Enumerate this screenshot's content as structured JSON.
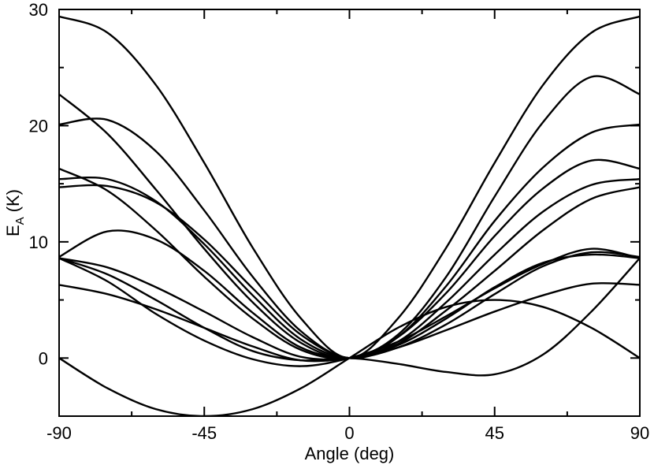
{
  "chart_data": {
    "type": "line",
    "xlabel": "Angle (deg)",
    "ylabel_main": "E",
    "ylabel_sub": "A",
    "ylabel_unit": "(K)",
    "xlim": [
      -90,
      90
    ],
    "ylim": [
      -5,
      30
    ],
    "x_ticks": [
      -90,
      -45,
      0,
      45,
      90
    ],
    "x_tick_labels": [
      "-90",
      "-45",
      "0",
      "45",
      "90"
    ],
    "y_ticks": [
      0,
      10,
      20,
      30
    ],
    "y_tick_labels": [
      "0",
      "10",
      "20",
      "30"
    ],
    "x_minor_ticks": [
      -67.5,
      -22.5,
      22.5,
      67.5
    ],
    "y_minor_ticks": [
      -5,
      5,
      15,
      25
    ],
    "grid": false,
    "legend": "none",
    "line_color": "#000000",
    "series": [
      {
        "x": [
          -90,
          -75,
          -60,
          -45,
          -30,
          -15,
          0,
          15,
          30,
          45,
          60,
          75,
          90
        ],
        "y": [
          29.4,
          28.0,
          23.5,
          16.8,
          9.5,
          3.4,
          0,
          3.4,
          9.5,
          16.8,
          23.5,
          28.0,
          29.4
        ]
      },
      {
        "x": [
          -90,
          -75,
          -60,
          -45,
          -30,
          -15,
          0,
          15,
          30,
          45,
          60,
          75,
          90
        ],
        "y": [
          22.7,
          19.3,
          14.5,
          9.4,
          4.8,
          1.3,
          0,
          2.0,
          7.0,
          13.9,
          20.3,
          24.2,
          22.7
        ]
      },
      {
        "x": [
          -90,
          -75,
          -60,
          -45,
          -30,
          -15,
          0,
          15,
          30,
          45,
          60,
          75,
          90
        ],
        "y": [
          20.1,
          20.5,
          17.8,
          12.7,
          7.0,
          2.3,
          0,
          1.8,
          6.2,
          11.8,
          16.4,
          19.4,
          20.1
        ]
      },
      {
        "x": [
          -90,
          -75,
          -60,
          -45,
          -30,
          -15,
          0,
          15,
          30,
          45,
          60,
          75,
          90
        ],
        "y": [
          16.3,
          14.4,
          11.0,
          7.0,
          3.4,
          0.7,
          0,
          1.8,
          5.6,
          10.5,
          14.6,
          17.0,
          16.3
        ]
      },
      {
        "x": [
          -90,
          -75,
          -60,
          -45,
          -30,
          -15,
          0,
          15,
          30,
          45,
          60,
          75,
          90
        ],
        "y": [
          15.4,
          15.4,
          13.5,
          9.8,
          5.4,
          1.6,
          0,
          1.4,
          4.8,
          8.9,
          12.6,
          14.9,
          15.4
        ]
      },
      {
        "x": [
          -90,
          -75,
          -60,
          -45,
          -30,
          -15,
          0,
          15,
          30,
          45,
          60,
          75,
          90
        ],
        "y": [
          14.7,
          14.8,
          13.4,
          10.2,
          6.0,
          2.0,
          0,
          1.2,
          4.1,
          7.5,
          11.0,
          13.7,
          14.7
        ]
      },
      {
        "x": [
          -90,
          -75,
          -60,
          -45,
          -30,
          -15,
          0,
          15,
          30,
          45,
          60,
          75,
          90
        ],
        "y": [
          8.7,
          10.9,
          10.2,
          7.5,
          3.9,
          0.9,
          0,
          0.9,
          2.9,
          5.5,
          7.9,
          9.1,
          8.7
        ]
      },
      {
        "x": [
          -90,
          -75,
          -60,
          -45,
          -30,
          -15,
          0,
          15,
          30,
          45,
          60,
          75,
          90
        ],
        "y": [
          8.6,
          6.6,
          3.8,
          1.5,
          -0.1,
          -0.7,
          0,
          1.4,
          3.6,
          6.0,
          8.1,
          9.4,
          8.6
        ]
      },
      {
        "x": [
          -90,
          -75,
          -60,
          -45,
          -30,
          -15,
          0,
          15,
          30,
          45,
          60,
          75,
          90
        ],
        "y": [
          8.6,
          7.8,
          6.1,
          4.0,
          1.8,
          0.1,
          0,
          1.1,
          3.4,
          6.1,
          8.2,
          8.9,
          8.6
        ]
      },
      {
        "x": [
          -90,
          -75,
          -60,
          -45,
          -30,
          -15,
          0,
          15,
          30,
          45,
          60,
          75,
          90
        ],
        "y": [
          6.3,
          5.5,
          4.2,
          2.6,
          1.0,
          -0.2,
          0,
          0.9,
          2.4,
          4.0,
          5.4,
          6.4,
          6.3
        ]
      },
      {
        "x": [
          -90,
          -75,
          -60,
          -45,
          -30,
          -15,
          0,
          15,
          30,
          45,
          60,
          75,
          90
        ],
        "y": [
          0,
          -2.6,
          -4.4,
          -5.0,
          -4.4,
          -2.6,
          0,
          2.6,
          4.4,
          5.0,
          4.4,
          2.6,
          0
        ]
      },
      {
        "x": [
          -90,
          -75,
          -60,
          -45,
          -30,
          -15,
          0,
          15,
          30,
          45,
          60,
          75,
          90
        ],
        "y": [
          8.6,
          7.2,
          5.0,
          2.6,
          0.6,
          -0.2,
          0,
          -0.5,
          -1.2,
          -1.4,
          0.3,
          4.0,
          8.6
        ]
      }
    ]
  }
}
